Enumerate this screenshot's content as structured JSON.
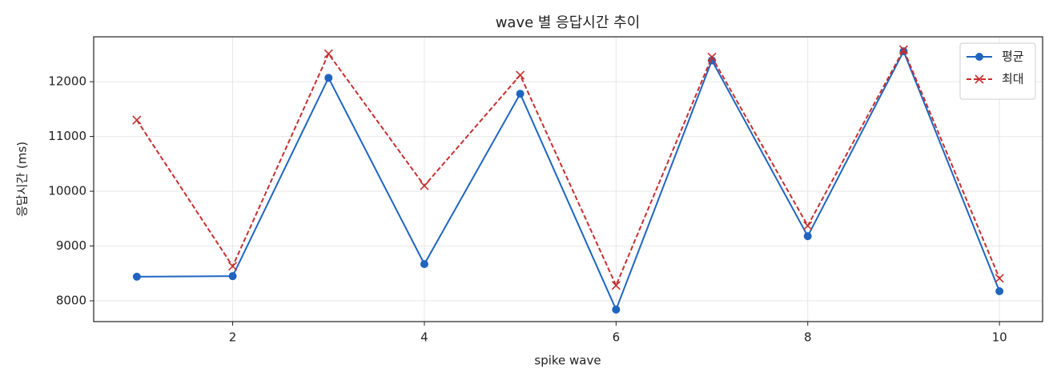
{
  "chart_data": {
    "type": "line",
    "title": "wave 별 응답시간 추이",
    "x_label": "spike wave",
    "y_label": "응답시간 (ms)",
    "x": [
      1,
      2,
      3,
      4,
      5,
      6,
      7,
      8,
      9,
      10
    ],
    "series": [
      {
        "name": "평균",
        "color": "#1f65c0",
        "marker": "circle",
        "dash": "solid",
        "values": [
          8440,
          8450,
          12070,
          8670,
          11780,
          7840,
          12390,
          9180,
          12555,
          8175
        ]
      },
      {
        "name": "최대",
        "color": "#c62f2f",
        "marker": "x",
        "dash": "dashed",
        "values": [
          11300,
          8630,
          12510,
          10100,
          12120,
          8280,
          12450,
          9370,
          12585,
          8410
        ]
      }
    ],
    "xlim": [
      0.55,
      10.45
    ],
    "ylim": [
      7620,
      12820
    ],
    "xticks": [
      2,
      4,
      6,
      8,
      10
    ],
    "yticks": [
      8000,
      9000,
      10000,
      11000,
      12000
    ],
    "grid": true,
    "legend": "upper right"
  }
}
